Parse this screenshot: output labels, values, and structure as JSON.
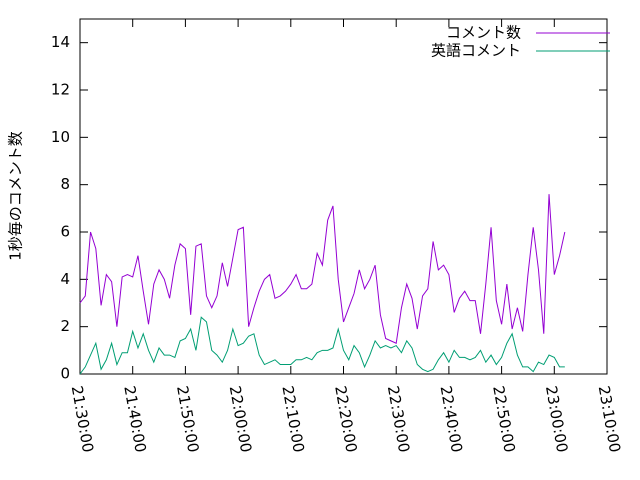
{
  "chart_data": {
    "type": "line",
    "y_label": "1秒毎のコメント数",
    "x": [
      "21:30:00",
      "21:31:00",
      "21:32:00",
      "21:33:00",
      "21:34:00",
      "21:35:00",
      "21:36:00",
      "21:37:00",
      "21:38:00",
      "21:39:00",
      "21:40:00",
      "21:41:00",
      "21:42:00",
      "21:43:00",
      "21:44:00",
      "21:45:00",
      "21:46:00",
      "21:47:00",
      "21:48:00",
      "21:49:00",
      "21:50:00",
      "21:51:00",
      "21:52:00",
      "21:53:00",
      "21:54:00",
      "21:55:00",
      "21:56:00",
      "21:57:00",
      "21:58:00",
      "21:59:00",
      "22:00:00",
      "22:01:00",
      "22:02:00",
      "22:03:00",
      "22:04:00",
      "22:05:00",
      "22:06:00",
      "22:07:00",
      "22:08:00",
      "22:09:00",
      "22:10:00",
      "22:11:00",
      "22:12:00",
      "22:13:00",
      "22:14:00",
      "22:15:00",
      "22:16:00",
      "22:17:00",
      "22:18:00",
      "22:19:00",
      "22:20:00",
      "22:21:00",
      "22:22:00",
      "22:23:00",
      "22:24:00",
      "22:25:00",
      "22:26:00",
      "22:27:00",
      "22:28:00",
      "22:29:00",
      "22:30:00",
      "22:31:00",
      "22:32:00",
      "22:33:00",
      "22:34:00",
      "22:35:00",
      "22:36:00",
      "22:37:00",
      "22:38:00",
      "22:39:00",
      "22:40:00",
      "22:41:00",
      "22:42:00",
      "22:43:00",
      "22:44:00",
      "22:45:00",
      "22:46:00",
      "22:47:00",
      "22:48:00",
      "22:49:00",
      "22:50:00",
      "22:51:00",
      "22:52:00",
      "22:53:00",
      "22:54:00",
      "22:55:00",
      "22:56:00",
      "22:57:00",
      "22:58:00",
      "22:59:00",
      "23:00:00",
      "23:01:00",
      "23:02:00"
    ],
    "series": [
      {
        "name": "コメント数",
        "color": "#9400d3",
        "values": [
          3.0,
          3.3,
          6.0,
          5.3,
          2.9,
          4.2,
          3.9,
          2.0,
          4.1,
          4.2,
          4.1,
          5.0,
          3.5,
          2.1,
          3.8,
          4.4,
          4.0,
          3.2,
          4.6,
          5.5,
          5.3,
          2.5,
          5.4,
          5.5,
          3.3,
          2.8,
          3.3,
          4.7,
          3.7,
          4.9,
          6.1,
          6.2,
          2.0,
          2.8,
          3.5,
          4.0,
          4.2,
          3.2,
          3.3,
          3.5,
          3.8,
          4.2,
          3.6,
          3.6,
          3.8,
          5.1,
          4.6,
          6.5,
          7.1,
          4.0,
          2.2,
          2.8,
          3.4,
          4.4,
          3.6,
          4.0,
          4.6,
          2.5,
          1.5,
          1.4,
          1.3,
          2.8,
          3.8,
          3.2,
          1.9,
          3.3,
          3.6,
          5.6,
          4.4,
          4.6,
          4.2,
          2.6,
          3.2,
          3.5,
          3.1,
          3.1,
          1.7,
          3.8,
          6.2,
          3.1,
          2.1,
          3.8,
          1.9,
          2.8,
          1.8,
          4.2,
          6.2,
          4.4,
          1.7,
          7.6,
          4.2,
          5.0,
          6.0
        ]
      },
      {
        "name": "英語コメント",
        "color": "#009e73",
        "values": [
          0.0,
          0.3,
          0.8,
          1.3,
          0.2,
          0.6,
          1.3,
          0.4,
          0.9,
          0.9,
          1.8,
          1.1,
          1.7,
          1.0,
          0.5,
          1.1,
          0.8,
          0.8,
          0.7,
          1.4,
          1.5,
          1.9,
          1.0,
          2.4,
          2.2,
          1.0,
          0.8,
          0.5,
          1.0,
          1.9,
          1.2,
          1.3,
          1.6,
          1.7,
          0.8,
          0.4,
          0.5,
          0.6,
          0.4,
          0.4,
          0.4,
          0.6,
          0.6,
          0.7,
          0.6,
          0.9,
          1.0,
          1.0,
          1.1,
          1.9,
          1.0,
          0.6,
          1.2,
          0.9,
          0.3,
          0.8,
          1.4,
          1.1,
          1.2,
          1.1,
          1.2,
          0.9,
          1.4,
          1.1,
          0.4,
          0.2,
          0.1,
          0.2,
          0.6,
          0.9,
          0.5,
          1.0,
          0.7,
          0.7,
          0.6,
          0.7,
          1.0,
          0.5,
          0.8,
          0.4,
          0.7,
          1.3,
          1.7,
          0.8,
          0.3,
          0.3,
          0.1,
          0.5,
          0.4,
          0.8,
          0.7,
          0.3,
          0.3
        ]
      }
    ],
    "xlim": [
      "21:30:00",
      "23:10:00"
    ],
    "xticks": [
      "21:30:00",
      "21:40:00",
      "21:50:00",
      "22:00:00",
      "22:10:00",
      "22:20:00",
      "22:30:00",
      "22:40:00",
      "22:50:00",
      "23:00:00",
      "23:10:00"
    ],
    "ylim": [
      0,
      15
    ],
    "yticks": [
      0,
      2,
      4,
      6,
      8,
      10,
      12,
      14
    ],
    "legend": "top-right"
  }
}
